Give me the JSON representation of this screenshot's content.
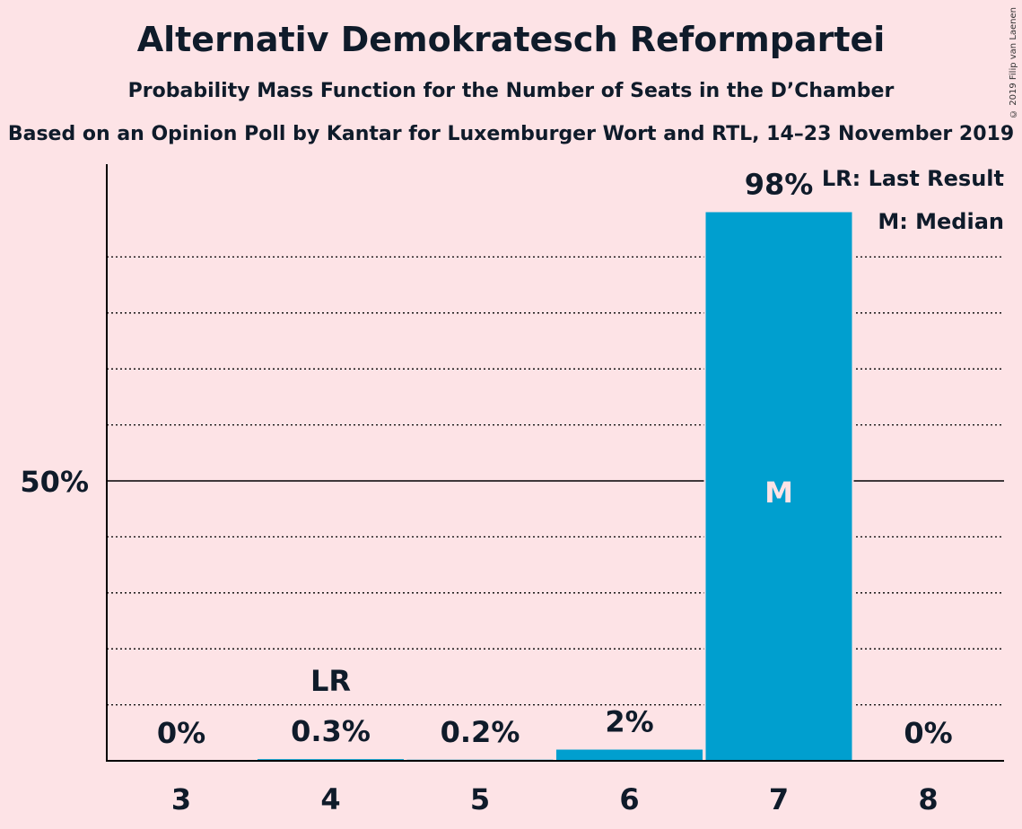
{
  "title": "Alternativ Demokratesch Reformpartei",
  "subtitle": "Probability Mass Function for the Number of Seats in the D’Chamber",
  "source": "Based on an Opinion Poll by Kantar for Luxemburger Wort and RTL, 14–23 November 2019",
  "copyright": "© 2019 Filip van Laenen",
  "legend": {
    "last_result": "LR: Last Result",
    "median": "M: Median"
  },
  "colors": {
    "bar": "#009fcf",
    "background": "#fde3e6",
    "axis": "#000000"
  },
  "chart_data": {
    "type": "bar",
    "categories": [
      "3",
      "4",
      "5",
      "6",
      "7",
      "8"
    ],
    "values": [
      0,
      0.3,
      0.2,
      2,
      98,
      0
    ],
    "value_labels": [
      "0%",
      "0.3%",
      "0.2%",
      "2%",
      "98%",
      "0%"
    ],
    "ytick_label": "50%",
    "ytick_value": 50,
    "ylim": [
      0,
      100
    ],
    "ygrid_step": 10,
    "last_result_category": "4",
    "last_result_marker": "LR",
    "median_category": "7",
    "median_marker": "M",
    "xlabel": "",
    "ylabel": ""
  }
}
